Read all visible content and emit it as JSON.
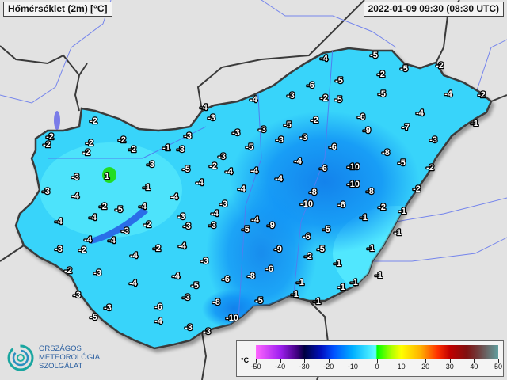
{
  "header": {
    "title": "Hőmérséklet (2m) [°C]",
    "timestamp": "2022-01-09 09:30 (08:30 UTC)"
  },
  "map": {
    "region": "Hungary",
    "variable": "2 m air temperature",
    "station_values": [
      -2,
      -2,
      -2,
      -2,
      -2,
      -2,
      -2,
      -1,
      -3,
      -3,
      -4,
      -3,
      -3,
      -5,
      -2,
      -3,
      -4,
      -3,
      -5,
      -4,
      1,
      -3,
      -1,
      -4,
      -4,
      -4,
      -3,
      -6,
      -5,
      -2,
      -5,
      -3,
      -5,
      -2,
      -4,
      -5,
      -2,
      -5,
      -2,
      -5,
      -3,
      -3,
      -4,
      -4,
      -6,
      -9,
      -4,
      -7,
      -2,
      -4,
      -1,
      -3,
      -6,
      -4,
      -6,
      -10,
      -8,
      -5,
      -2,
      -10,
      -8,
      -2,
      -8,
      -10,
      -6,
      -2,
      -1,
      -1,
      -5,
      -6,
      -1,
      -5,
      -2,
      -1,
      -1,
      -1,
      -1,
      -1,
      -1,
      -1,
      -1,
      -5,
      -10,
      -8,
      -6,
      -8,
      -6,
      -9,
      -9,
      -4,
      -5,
      -3,
      -4,
      -3,
      -3,
      -4,
      -2,
      -5,
      -4,
      -3,
      -4,
      -4,
      -2,
      -3,
      -3,
      -4,
      -4,
      -3,
      -2,
      -2,
      -4,
      -4,
      -2,
      -3,
      -4,
      -4,
      -3,
      -5,
      -3,
      -3,
      -3,
      -5,
      -6,
      -4,
      -3,
      -3
    ]
  },
  "legend": {
    "unit": "°C",
    "ticks": [
      "-50",
      "-40",
      "-30",
      "-20",
      "-10",
      "0",
      "10",
      "20",
      "30",
      "40",
      "50"
    ],
    "range": [
      -50,
      50
    ],
    "colors": {
      "min": "#ff66ff",
      "cold": "#0050ff",
      "zero": "#00ff00",
      "warm": "#ffff00",
      "hot": "#c00000",
      "max": "#60a0a0"
    }
  },
  "logo": {
    "lines": [
      "ORSZÁGOS",
      "METEOROLÓGIAI",
      "SZOLGÁLAT"
    ]
  },
  "colors": {
    "land_fill": "#38d4fa",
    "cold_core": "#0a78f0",
    "border": "#3a3a3a",
    "background": "#e2e2e2",
    "river": "#6a7df0"
  }
}
